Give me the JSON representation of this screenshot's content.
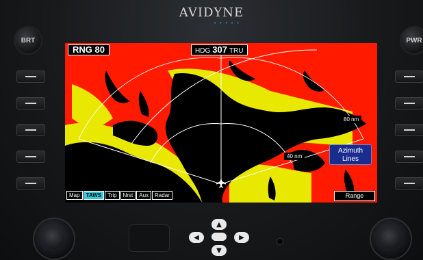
{
  "brand": {
    "name": "AVIDYNE"
  },
  "bezel_buttons": {
    "left_knob": "BRT",
    "right_knob": "PWR"
  },
  "map": {
    "range_label": "RNG 80",
    "heading_prefix": "HDG",
    "heading_value": "307",
    "heading_suffix": "TRU",
    "ring_labels": {
      "outer": "80 nm",
      "inner": "40 nm"
    },
    "colors": {
      "high_terrain": "#ff1a00",
      "mid_terrain": "#e8e800",
      "water": "#000000",
      "lines": "#ffffff"
    }
  },
  "tabs": [
    {
      "label": "Map",
      "active": false
    },
    {
      "label": "TAWS",
      "active": true
    },
    {
      "label": "Trip",
      "active": false
    },
    {
      "label": "Nrst",
      "active": false
    },
    {
      "label": "Aux",
      "active": false
    },
    {
      "label": "Radar",
      "active": false
    }
  ],
  "soft_keys": {
    "range": "Range",
    "azimuth": "Azimuth Lines"
  },
  "icons": [
    "aircraft-icon",
    "up-arrow-icon",
    "down-arrow-icon",
    "left-arrow-icon",
    "right-arrow-icon"
  ]
}
